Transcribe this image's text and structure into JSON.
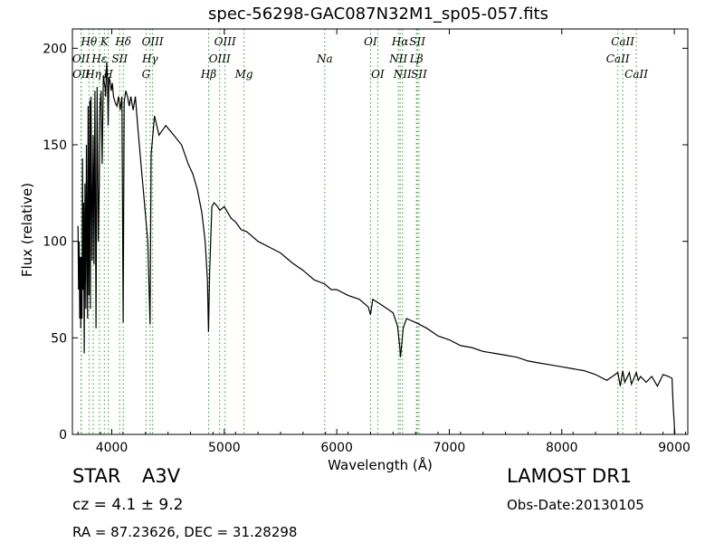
{
  "chart_data": {
    "type": "line",
    "title": "spec-56298-GAC087N32M1_sp05-057.fits",
    "xlabel": "Wavelength (Å)",
    "ylabel": "Flux (relative)",
    "xlim": [
      3650,
      9120
    ],
    "ylim": [
      0,
      210
    ],
    "xticks": [
      4000,
      5000,
      6000,
      7000,
      8000,
      9000
    ],
    "yticks": [
      0,
      50,
      100,
      150,
      200
    ],
    "grid": false,
    "line_color": "#000000",
    "marker_color": "#2ca02c",
    "series": [
      {
        "x": [
          3700,
          3705,
          3710,
          3715,
          3720,
          3724,
          3730,
          3735,
          3740,
          3745,
          3750,
          3755,
          3762,
          3770,
          3775,
          3785,
          3790,
          3797,
          3805,
          3810,
          3815,
          3825,
          3835,
          3842,
          3850,
          3860,
          3870,
          3880,
          3889,
          3895,
          3905,
          3915,
          3925,
          3933,
          3940,
          3945,
          3955,
          3962,
          3968,
          3975,
          3985,
          3995,
          4005,
          4015,
          4030,
          4045,
          4060,
          4075,
          4090,
          4101,
          4110,
          4125,
          4140,
          4155,
          4170,
          4190,
          4210,
          4230,
          4260,
          4290,
          4320,
          4340,
          4350,
          4380,
          4420,
          4480,
          4550,
          4620,
          4680,
          4720,
          4760,
          4800,
          4830,
          4850,
          4860,
          4870,
          4890,
          4910,
          4940,
          4960,
          5000,
          5060,
          5100,
          5150,
          5200,
          5300,
          5400,
          5500,
          5600,
          5700,
          5800,
          5890,
          5950,
          6000,
          6100,
          6200,
          6280,
          6300,
          6320,
          6400,
          6500,
          6540,
          6560,
          6565,
          6570,
          6590,
          6620,
          6700,
          6800,
          6900,
          7000,
          7100,
          7200,
          7300,
          7400,
          7500,
          7600,
          7700,
          7800,
          7900,
          8000,
          8100,
          8200,
          8300,
          8400,
          8450,
          8498,
          8520,
          8542,
          8560,
          8600,
          8620,
          8662,
          8680,
          8700,
          8750,
          8800,
          8850,
          8900,
          8950,
          8980,
          8990,
          9000,
          9005
        ],
        "y": [
          108,
          75,
          100,
          60,
          92,
          55,
          92,
          60,
          143,
          75,
          120,
          42,
          130,
          65,
          150,
          60,
          170,
          72,
          173,
          65,
          175,
          90,
          155,
          88,
          178,
          55,
          180,
          100,
          130,
          170,
          178,
          140,
          186,
          182,
          180,
          175,
          193,
          185,
          160,
          185,
          183,
          178,
          182,
          175,
          172,
          170,
          175,
          168,
          175,
          58,
          172,
          178,
          175,
          170,
          175,
          168,
          175,
          160,
          140,
          120,
          100,
          57,
          145,
          165,
          155,
          160,
          155,
          150,
          140,
          135,
          127,
          115,
          100,
          80,
          53,
          85,
          118,
          120,
          118,
          116,
          118,
          112,
          110,
          106,
          105,
          100,
          97,
          94,
          89,
          85,
          80,
          78,
          75,
          75,
          72,
          70,
          66,
          62,
          70,
          67,
          63,
          56,
          45,
          40,
          42,
          55,
          60,
          58,
          55,
          51,
          49,
          46,
          45,
          43,
          42,
          41,
          40,
          38,
          37,
          36,
          35,
          34,
          33,
          31,
          28,
          30,
          32,
          25,
          33,
          27,
          32,
          26,
          32,
          28,
          30,
          27,
          30,
          25,
          31,
          30,
          29,
          15,
          5,
          0
        ]
      }
    ],
    "lines": [
      {
        "label": "Hθ",
        "x": 3798,
        "row": 0
      },
      {
        "label": "OII",
        "x": 3727,
        "row": 1
      },
      {
        "label": "OII",
        "x": 3729,
        "row": 2
      },
      {
        "label": "Hη",
        "x": 3835,
        "row": 2
      },
      {
        "label": "K",
        "x": 3934,
        "row": 0
      },
      {
        "label": "Hε",
        "x": 3890,
        "row": 1
      },
      {
        "label": "SII",
        "x": 4070,
        "row": 1
      },
      {
        "label": "H",
        "x": 3969,
        "row": 2
      },
      {
        "label": "Hδ",
        "x": 4102,
        "row": 0
      },
      {
        "label": "OIII",
        "x": 4363,
        "row": 0
      },
      {
        "label": "Hγ",
        "x": 4341,
        "row": 1
      },
      {
        "label": "G",
        "x": 4305,
        "row": 2
      },
      {
        "label": "OIII",
        "x": 5007,
        "row": 0
      },
      {
        "label": "OIII",
        "x": 4959,
        "row": 1
      },
      {
        "label": "Hβ",
        "x": 4861,
        "row": 2
      },
      {
        "label": "Mg",
        "x": 5175,
        "row": 2
      },
      {
        "label": "Na",
        "x": 5893,
        "row": 1
      },
      {
        "label": "OI",
        "x": 6300,
        "row": 0
      },
      {
        "label": "OI",
        "x": 6364,
        "row": 2
      },
      {
        "label": "Hα",
        "x": 6563,
        "row": 0
      },
      {
        "label": "SII",
        "x": 6716,
        "row": 0
      },
      {
        "label": "NII",
        "x": 6548,
        "row": 1
      },
      {
        "label": "Lβ",
        "x": 6708,
        "row": 1
      },
      {
        "label": "NII",
        "x": 6584,
        "row": 2
      },
      {
        "label": "SII",
        "x": 6731,
        "row": 2
      },
      {
        "label": "CaII",
        "x": 8542,
        "row": 0
      },
      {
        "label": "CaII",
        "x": 8498,
        "row": 1
      },
      {
        "label": "CaII",
        "x": 8662,
        "row": 2
      }
    ]
  },
  "info": {
    "class": "STAR",
    "subclass": "A3V",
    "survey": "LAMOST DR1",
    "cz": "cz = 4.1 ± 9.2",
    "obs_date": "Obs-Date:20130105",
    "coords": "RA = 87.23626, DEC = 31.28298"
  }
}
